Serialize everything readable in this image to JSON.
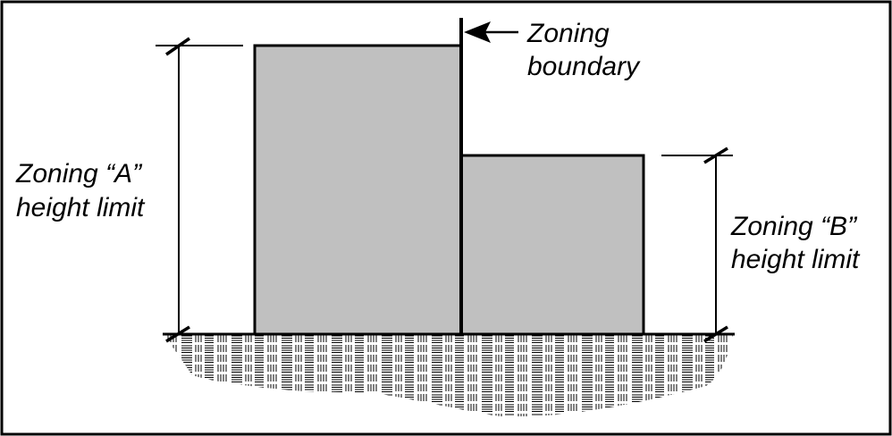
{
  "labels": {
    "zoning_boundary_line1": "Zoning",
    "zoning_boundary_line2": "boundary",
    "zone_a_line1": "Zoning “A”",
    "zone_a_line2": "height limit",
    "zone_b_line1": "Zoning “B”",
    "zone_b_line2": "height limit"
  },
  "colors": {
    "building_fill": "#c0c0c0",
    "ink": "#000000",
    "background": "#ffffff"
  }
}
